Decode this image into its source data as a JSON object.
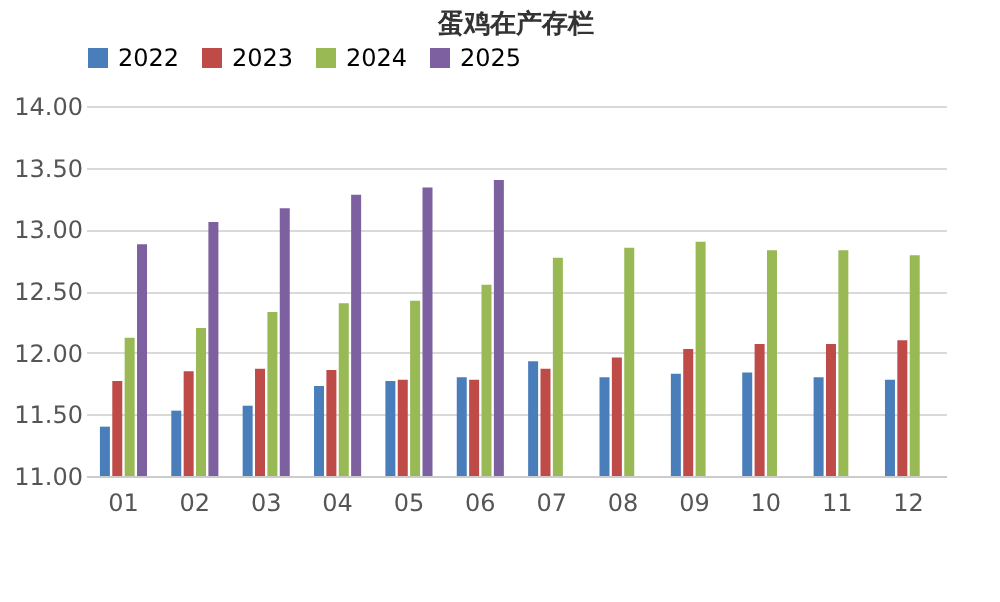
{
  "chart_data": {
    "type": "bar",
    "title": "蛋鸡在产存栏",
    "categories": [
      "01",
      "02",
      "03",
      "04",
      "05",
      "06",
      "07",
      "08",
      "09",
      "10",
      "11",
      "12"
    ],
    "series": [
      {
        "name": "2022",
        "color": "#4a7ebb",
        "values": [
          11.4,
          11.53,
          11.57,
          11.73,
          11.77,
          11.8,
          11.93,
          11.8,
          11.83,
          11.84,
          11.8,
          11.78
        ]
      },
      {
        "name": "2023",
        "color": "#be4b48",
        "values": [
          11.77,
          11.85,
          11.87,
          11.86,
          11.78,
          11.78,
          11.87,
          11.96,
          12.03,
          12.07,
          12.07,
          12.1
        ]
      },
      {
        "name": "2024",
        "color": "#98b954",
        "values": [
          12.12,
          12.2,
          12.33,
          12.4,
          12.42,
          12.55,
          12.77,
          12.85,
          12.9,
          12.83,
          12.83,
          12.79
        ]
      },
      {
        "name": "2025",
        "color": "#7d60a0",
        "values": [
          12.88,
          13.06,
          13.17,
          13.28,
          13.34,
          13.4,
          null,
          null,
          null,
          null,
          null,
          null
        ]
      }
    ],
    "ylim": [
      11,
      14
    ],
    "yticks": [
      {
        "value": 11,
        "label": "11.00"
      },
      {
        "value": 11.5,
        "label": "11.50"
      },
      {
        "value": 12,
        "label": "12.00"
      },
      {
        "value": 12.5,
        "label": "12.50"
      },
      {
        "value": 13,
        "label": "13.00"
      },
      {
        "value": 13.5,
        "label": "13.50"
      },
      {
        "value": 14,
        "label": "14.00"
      }
    ],
    "grid": "y",
    "legend": "top"
  }
}
